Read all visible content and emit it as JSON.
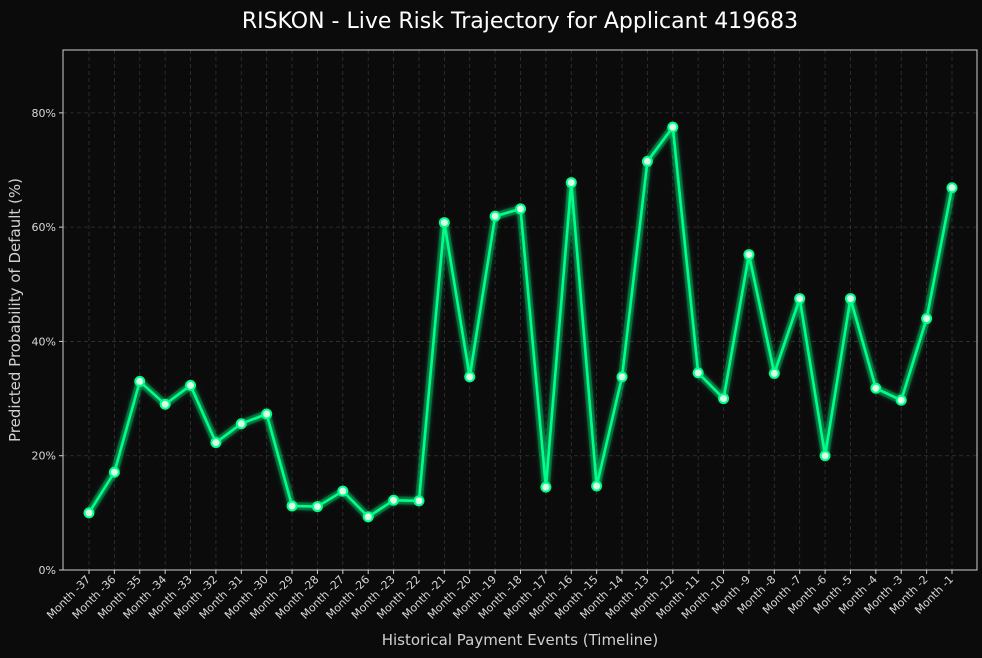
{
  "chart_data": {
    "type": "line",
    "title": "RISKON - Live Risk Trajectory for Applicant 419683",
    "xlabel": "Historical Payment Events (Timeline)",
    "ylabel": "Predicted Probability of Default (%)",
    "ylim": [
      0,
      0.91
    ],
    "yticks": [
      0,
      0.2,
      0.4,
      0.6,
      0.8
    ],
    "ytick_labels": [
      "0%",
      "20%",
      "40%",
      "60%",
      "80%"
    ],
    "grid": true,
    "categories": [
      "Month -37",
      "Month -36",
      "Month -35",
      "Month -34",
      "Month -33",
      "Month -32",
      "Month -31",
      "Month -30",
      "Month -29",
      "Month -28",
      "Month -27",
      "Month -26",
      "Month -23",
      "Month -22",
      "Month -21",
      "Month -20",
      "Month -19",
      "Month -18",
      "Month -17",
      "Month -16",
      "Month -15",
      "Month -14",
      "Month -13",
      "Month -12",
      "Month -11",
      "Month -10",
      "Month -9",
      "Month -8",
      "Month -7",
      "Month -6",
      "Month -5",
      "Month -4",
      "Month -3",
      "Month -2",
      "Month -1"
    ],
    "series": [
      {
        "values": [
          0.1,
          0.171,
          0.33,
          0.29,
          0.323,
          0.223,
          0.256,
          0.273,
          0.112,
          0.111,
          0.138,
          0.093,
          0.122,
          0.121,
          0.608,
          0.338,
          0.619,
          0.632,
          0.145,
          0.678,
          0.147,
          0.338,
          0.715,
          0.775,
          0.345,
          0.3,
          0.552,
          0.344,
          0.475,
          0.2,
          0.475,
          0.318,
          0.297,
          0.44,
          0.669
        ],
        "color": "#00ff88"
      }
    ],
    "colors": {
      "background": "#0b0b0b",
      "line": "#00ff88",
      "marker_fill": "#d9ffe9",
      "frame": "#cfcfcf"
    }
  }
}
